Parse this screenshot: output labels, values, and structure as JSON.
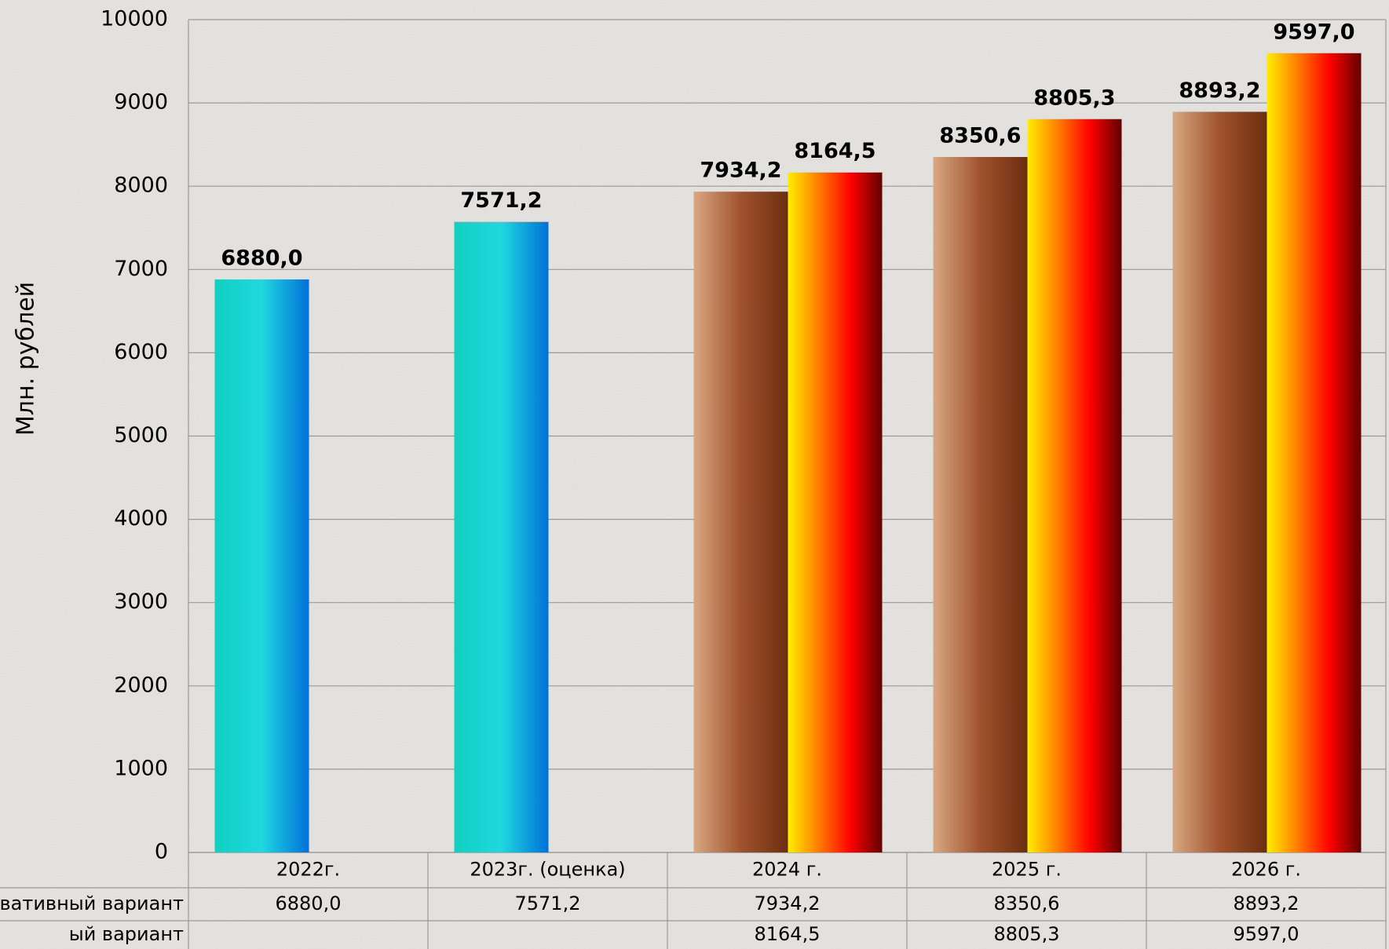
{
  "chart_data": {
    "type": "bar",
    "y_label": "Млн. рублей",
    "categories": [
      "2022г.",
      "2023г. (оценка)",
      "2024 г.",
      "2025 г.",
      "2026 г."
    ],
    "series": [
      {
        "name": "овативный вариант",
        "color": [
          "#d8a882",
          "#a0522d",
          "#6b2e10"
        ],
        "point_colors": [
          [
            "#10d0c0",
            "#20d8e0",
            "#0070d8"
          ],
          [
            "#10d0c0",
            "#20d8e0",
            "#0070d8"
          ],
          null,
          null,
          null
        ],
        "values": [
          6880.0,
          7571.2,
          7934.2,
          8350.6,
          8893.2
        ],
        "value_labels": [
          "6880,0",
          "7571,2",
          "7934,2",
          "8350,6",
          "8893,2"
        ]
      },
      {
        "name": "ый вариант",
        "color": [
          "#ffee00",
          "#ff7a00",
          "#ff0000",
          "#600000"
        ],
        "values": [
          null,
          null,
          8164.5,
          8805.3,
          9597.0
        ],
        "value_labels": [
          null,
          null,
          "8164,5",
          "8805,3",
          "9597,0"
        ]
      }
    ],
    "ylim": [
      0,
      10000
    ],
    "yticks": [
      0,
      1000,
      2000,
      3000,
      4000,
      5000,
      6000,
      7000,
      8000,
      9000,
      10000
    ],
    "grid": true
  }
}
